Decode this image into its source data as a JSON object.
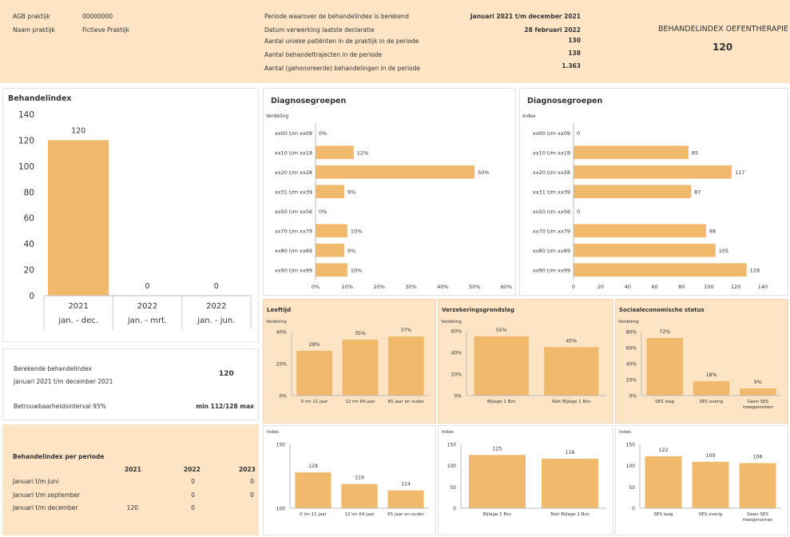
{
  "header": {
    "agb_label": "AGB praktijk",
    "agb_value": "00000000",
    "naam_label": "Naam praktijk",
    "naam_value": "Fictieve Praktijk",
    "info": [
      {
        "label": "Periode waarover de behandelindex is berekend",
        "value": "Januari 2021 t/m december 2021"
      },
      {
        "label": "Datum verwerking laatste declaratie",
        "value": "28 februari 2022"
      },
      {
        "label": "Aantal unieke patiënten in de praktijk in de periode",
        "value": "130"
      },
      {
        "label": "Aantal behandeltrajecten in de periode",
        "value": "138"
      },
      {
        "label": "Aantal (gehonoreerde) behandelingen in de periode",
        "value": "1.363"
      }
    ],
    "index_title": "BEHANDELINDEX OEFENTHERAPIE",
    "index_value": "120"
  },
  "behandelindex_panel": {
    "title": "Behandelindex"
  },
  "berekende": {
    "label1": "Berekende behandelindex",
    "label2": "Januari 2021 t/m december 2021",
    "value": "120",
    "interval_label": "Betrouwbaarheidsinterval 95%",
    "interval_value": "min 112/128 max"
  },
  "per_periode": {
    "title": "Behandelindex per periode",
    "years": [
      "2021",
      "2022",
      "2023"
    ],
    "rows": [
      {
        "label": "Januari t/m juni",
        "v2021": "",
        "v2022": "0",
        "v2023": "0"
      },
      {
        "label": "Januari t/m september",
        "v2021": "",
        "v2022": "0",
        "v2023": "0"
      },
      {
        "label": "Januari t/m december",
        "v2021": "120",
        "v2022": "0",
        "v2023": ""
      }
    ]
  },
  "section_titles": {
    "diag1": "Diagnosegroepen",
    "diag2": "Diagnosegroepen",
    "leeftijd": "Leeftijd",
    "verzekering": "Verzekeringsgrondslag",
    "ses": "Sociaaleconomische status"
  },
  "chart_data": [
    {
      "id": "behandelindex",
      "type": "bar",
      "categories": [
        "2021",
        "2022",
        "2022"
      ],
      "sublabels": [
        "jan. - dec.",
        "jan. - mrt.",
        "jan. - jun."
      ],
      "values": [
        120,
        0,
        0
      ],
      "yticks": [
        0,
        20,
        40,
        60,
        80,
        100,
        120,
        140
      ],
      "ylim": [
        0,
        140
      ],
      "color": "#f0b96b"
    },
    {
      "id": "diag_verdeling",
      "type": "bar",
      "orientation": "horizontal",
      "subtitle": "Verdeling",
      "categories": [
        "xx00 t/m xx09",
        "xx10 t/m xx19",
        "xx20 t/m xx28",
        "xx31 t/m xx39",
        "xx50 t/m xx56",
        "xx70 t/m xx79",
        "xx80 t/m xx89",
        "xx90 t/m xx99"
      ],
      "values": [
        0,
        12,
        50,
        9,
        0,
        10,
        9,
        10
      ],
      "value_labels": [
        "0%",
        "12%",
        "50%",
        "9%",
        "0%",
        "10%",
        "9%",
        "10%"
      ],
      "xticks": [
        "0%",
        "10%",
        "20%",
        "30%",
        "40%",
        "50%",
        "60%"
      ],
      "xlim": [
        0,
        60
      ],
      "color": "#f0b96b"
    },
    {
      "id": "diag_index",
      "type": "bar",
      "orientation": "horizontal",
      "subtitle": "Index",
      "categories": [
        "xx00 t/m xx09",
        "xx10 t/m xx19",
        "xx20 t/m xx28",
        "xx31 t/m xx39",
        "xx50 t/m xx56",
        "xx70 t/m xx79",
        "xx80 t/m xx89",
        "xx90 t/m xx99"
      ],
      "values": [
        0,
        85,
        117,
        87,
        0,
        98,
        105,
        128
      ],
      "value_labels": [
        "0",
        "85",
        "117",
        "87",
        "0",
        "98",
        "105",
        "128"
      ],
      "xticks": [
        "0",
        "20",
        "40",
        "60",
        "80",
        "100",
        "120",
        "140"
      ],
      "xlim": [
        0,
        140
      ],
      "color": "#f0b96b"
    },
    {
      "id": "leeftijd_verdeling",
      "type": "bar",
      "subtitle": "Verdeling",
      "categories": [
        "0 tm 11 jaar",
        "12 tm 64 jaar",
        "65 jaar en ouder"
      ],
      "values": [
        28,
        35,
        37
      ],
      "value_labels": [
        "28%",
        "35%",
        "37%"
      ],
      "yticks": [
        "0%",
        "20%",
        "40%"
      ],
      "ylim": [
        0,
        40
      ],
      "color": "#f0b96b"
    },
    {
      "id": "verzekering_verdeling",
      "type": "bar",
      "subtitle": "Verdeling",
      "categories": [
        "Bijlage 1 Bzv",
        "Niet Bijlage 1 Bzv"
      ],
      "values": [
        55,
        45
      ],
      "value_labels": [
        "55%",
        "45%"
      ],
      "yticks": [
        "0%",
        "20%",
        "40%",
        "60%"
      ],
      "ylim": [
        0,
        60
      ],
      "color": "#f0b96b"
    },
    {
      "id": "ses_verdeling",
      "type": "bar",
      "subtitle": "Verdeling",
      "categories": [
        "SES laag",
        "SES overig",
        "Geen SES meegenomen"
      ],
      "values": [
        72,
        18,
        9
      ],
      "value_labels": [
        "72%",
        "18%",
        "9%"
      ],
      "yticks": [
        "0%",
        "20%",
        "40%",
        "60%",
        "80%"
      ],
      "ylim": [
        0,
        80
      ],
      "color": "#f0b96b"
    },
    {
      "id": "leeftijd_index",
      "type": "bar",
      "subtitle": "Index",
      "categories": [
        "0 tm 11 jaar",
        "12 tm 64 jaar",
        "65 jaar en ouder"
      ],
      "values": [
        128,
        119,
        114
      ],
      "value_labels": [
        "128",
        "119",
        "114"
      ],
      "yticks": [
        "100",
        "150"
      ],
      "ylim": [
        100,
        150
      ],
      "color": "#f0b96b"
    },
    {
      "id": "verzekering_index",
      "type": "bar",
      "subtitle": "Index",
      "categories": [
        "Bijlage 1 Bzv",
        "Niet Bijlage 1 Bzv"
      ],
      "values": [
        125,
        116
      ],
      "value_labels": [
        "125",
        "116"
      ],
      "yticks": [
        "0",
        "50",
        "100",
        "150"
      ],
      "ylim": [
        0,
        150
      ],
      "color": "#f0b96b"
    },
    {
      "id": "ses_index",
      "type": "bar",
      "subtitle": "Index",
      "categories": [
        "SES laag",
        "SES overig",
        "Geen SES meegenomen"
      ],
      "values": [
        122,
        109,
        106
      ],
      "value_labels": [
        "122",
        "109",
        "106"
      ],
      "yticks": [
        "0",
        "50",
        "100",
        "150"
      ],
      "ylim": [
        0,
        150
      ],
      "color": "#f0b96b"
    }
  ]
}
